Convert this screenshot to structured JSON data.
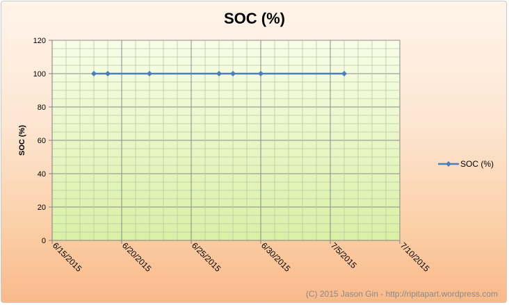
{
  "chart_data": {
    "type": "line",
    "title": "SOC (%)",
    "xlabel": "",
    "ylabel": "SOC (%)",
    "ylim": [
      0,
      120
    ],
    "yticks": [
      0,
      20,
      40,
      60,
      80,
      100,
      120
    ],
    "xlim": [
      "2015-06-15",
      "2015-07-10"
    ],
    "xtick_labels": [
      "6/15/2015",
      "6/20/2015",
      "6/25/2015",
      "6/30/2015",
      "7/5/2015",
      "7/10/2015"
    ],
    "xtick_dates": [
      "2015-06-15",
      "2015-06-20",
      "2015-06-25",
      "2015-06-30",
      "2015-07-05",
      "2015-07-10"
    ],
    "grid": true,
    "legend_position": "right",
    "series": [
      {
        "name": "SOC (%)",
        "color": "#4a7ebb",
        "points": [
          {
            "x": "2015-06-18",
            "y": 100
          },
          {
            "x": "2015-06-19",
            "y": 100
          },
          {
            "x": "2015-06-22",
            "y": 100
          },
          {
            "x": "2015-06-27",
            "y": 100
          },
          {
            "x": "2015-06-28",
            "y": 100
          },
          {
            "x": "2015-06-30",
            "y": 100
          },
          {
            "x": "2015-07-06",
            "y": 100
          }
        ]
      }
    ]
  },
  "legend_label": "SOC (%)",
  "credit": "(C) 2015 Jason Gin - http://ripitapart.wordpress.com"
}
